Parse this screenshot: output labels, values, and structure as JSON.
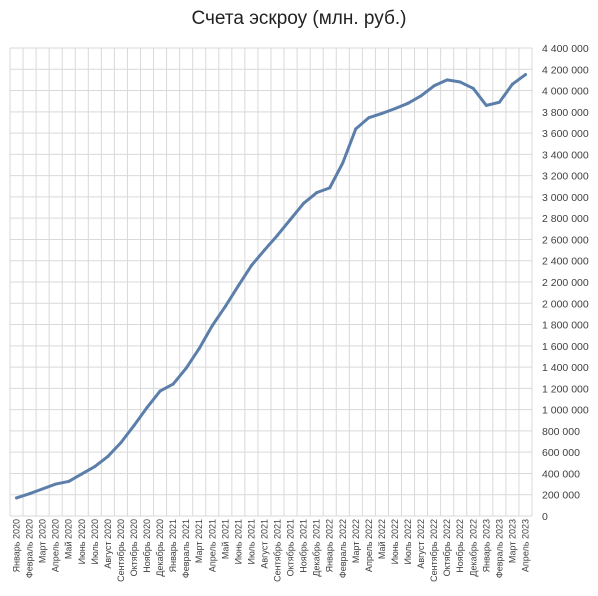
{
  "chart_data": {
    "type": "line",
    "title": "Счета эскроу (млн. руб.)",
    "xlabel": "",
    "ylabel": "",
    "ylim": [
      0,
      4400000
    ],
    "yticks": [
      0,
      200000,
      400000,
      600000,
      800000,
      1000000,
      1200000,
      1400000,
      1600000,
      1800000,
      2000000,
      2200000,
      2400000,
      2600000,
      2800000,
      3000000,
      3200000,
      3400000,
      3600000,
      3800000,
      4000000,
      4200000,
      4400000
    ],
    "ytick_labels": [
      "0",
      "200 000",
      "400 000",
      "600 000",
      "800 000",
      "1 000 000",
      "1 200 000",
      "1 400 000",
      "1 600 000",
      "1 800 000",
      "2 000 000",
      "2 200 000",
      "2 400 000",
      "2 600 000",
      "2 800 000",
      "3 000 000",
      "3 200 000",
      "3 400 000",
      "3 600 000",
      "3 800 000",
      "4 000 000",
      "4 200 000",
      "4 400 000"
    ],
    "grid": true,
    "legend": "none",
    "categories": [
      "Январь 2020",
      "Февраль 2020",
      "Март 2020",
      "Апрель 2020",
      "Май 2020",
      "Июнь 2020",
      "Июль 2020",
      "Август 2020",
      "Сентябрь 2020",
      "Октябрь 2020",
      "Ноябрь 2020",
      "Декабрь 2020",
      "Январь 2021",
      "Февраль 2021",
      "Март 2021",
      "Апрель 2021",
      "Май 2021",
      "Июнь 2021",
      "Июль 2021",
      "Август 2021",
      "Сентябрь 2021",
      "Октябрь 2021",
      "Ноябрь 2021",
      "Декабрь 2021",
      "Январь 2022",
      "Февраль 2022",
      "Март 2022",
      "Апрель 2022",
      "Май 2022",
      "Июнь 2022",
      "Июль 2022",
      "Август 2022",
      "Сентябрь 2022",
      "Октябрь 2022",
      "Ноябрь 2022",
      "Декабрь 2022",
      "Январь 2023",
      "Февраль 2023",
      "Март 2023",
      "Апрель 2023"
    ],
    "series": [
      {
        "name": "",
        "color": "#5b7faa",
        "values": [
          170000,
          210000,
          255000,
          300000,
          325000,
          395000,
          465000,
          560000,
          690000,
          850000,
          1020000,
          1175000,
          1240000,
          1390000,
          1575000,
          1790000,
          1970000,
          2165000,
          2355000,
          2500000,
          2640000,
          2790000,
          2940000,
          3040000,
          3085000,
          3320000,
          3640000,
          3745000,
          3785000,
          3830000,
          3880000,
          3950000,
          4045000,
          4100000,
          4080000,
          4020000,
          3860000,
          3890000,
          4060000,
          4150000
        ]
      }
    ]
  }
}
